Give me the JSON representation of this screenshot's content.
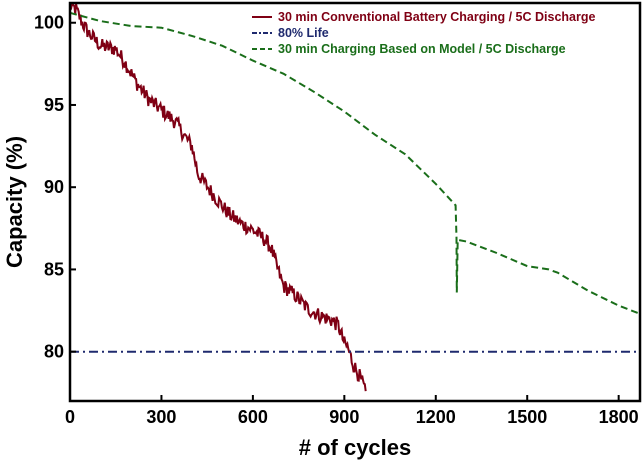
{
  "chart_data": {
    "type": "line",
    "title": "",
    "xlabel": "# of cycles",
    "ylabel": "Capacity (%)",
    "xlim": [
      0,
      1870
    ],
    "ylim": [
      77,
      101.2
    ],
    "x_ticks": [
      0,
      300,
      600,
      900,
      1200,
      1500,
      1800
    ],
    "x_tick_labels": [
      "0",
      "300",
      "600",
      "900",
      "1200",
      "1500",
      "1800"
    ],
    "y_ticks": [
      80,
      85,
      90,
      95,
      100
    ],
    "y_tick_labels": [
      "80",
      "85",
      "90",
      "95",
      "100"
    ],
    "grid": false,
    "legend_position": "top-right",
    "series": [
      {
        "name": "30 min Conventional Battery Charging / 5C Discharge",
        "color": "#7f0014",
        "style": "solid",
        "noise": 0.45,
        "points": [
          [
            0,
            101
          ],
          [
            20,
            100.8
          ],
          [
            40,
            100
          ],
          [
            60,
            99.4
          ],
          [
            100,
            98.6
          ],
          [
            150,
            98.4
          ],
          [
            180,
            97.6
          ],
          [
            220,
            96.3
          ],
          [
            260,
            95.3
          ],
          [
            300,
            94.7
          ],
          [
            350,
            93.9
          ],
          [
            380,
            93.0
          ],
          [
            400,
            92.5
          ],
          [
            420,
            90.8
          ],
          [
            440,
            90.3
          ],
          [
            480,
            89.3
          ],
          [
            520,
            88.4
          ],
          [
            560,
            87.8
          ],
          [
            600,
            87.4
          ],
          [
            640,
            86.8
          ],
          [
            660,
            86.3
          ],
          [
            680,
            85.1
          ],
          [
            700,
            84.0
          ],
          [
            740,
            83.4
          ],
          [
            780,
            82.6
          ],
          [
            820,
            82.2
          ],
          [
            860,
            81.9
          ],
          [
            880,
            81.6
          ],
          [
            900,
            80.5
          ],
          [
            910,
            80.3
          ],
          [
            930,
            79.2
          ],
          [
            950,
            78.5
          ],
          [
            970,
            77.6
          ]
        ]
      },
      {
        "name": "80% Life",
        "color": "#1f2a6e",
        "style": "dashdot",
        "points": [
          [
            0,
            80
          ],
          [
            1870,
            80
          ]
        ]
      },
      {
        "name": "30 min Charging Based on Model / 5C Discharge",
        "color": "#1a6e1a",
        "style": "dashed",
        "points": [
          [
            0,
            100.6
          ],
          [
            100,
            100.1
          ],
          [
            200,
            99.8
          ],
          [
            300,
            99.7
          ],
          [
            400,
            99.2
          ],
          [
            500,
            98.6
          ],
          [
            600,
            97.7
          ],
          [
            700,
            96.9
          ],
          [
            800,
            95.8
          ],
          [
            900,
            94.6
          ],
          [
            1000,
            93.2
          ],
          [
            1100,
            92.0
          ],
          [
            1200,
            90.2
          ],
          [
            1265,
            88.9
          ],
          [
            1268,
            86.9
          ],
          [
            1269,
            83.6
          ],
          [
            1272,
            86.8
          ],
          [
            1300,
            86.7
          ],
          [
            1400,
            86.0
          ],
          [
            1500,
            85.2
          ],
          [
            1570,
            85.0
          ],
          [
            1600,
            84.8
          ],
          [
            1700,
            83.7
          ],
          [
            1800,
            82.8
          ],
          [
            1870,
            82.3
          ]
        ]
      }
    ]
  }
}
